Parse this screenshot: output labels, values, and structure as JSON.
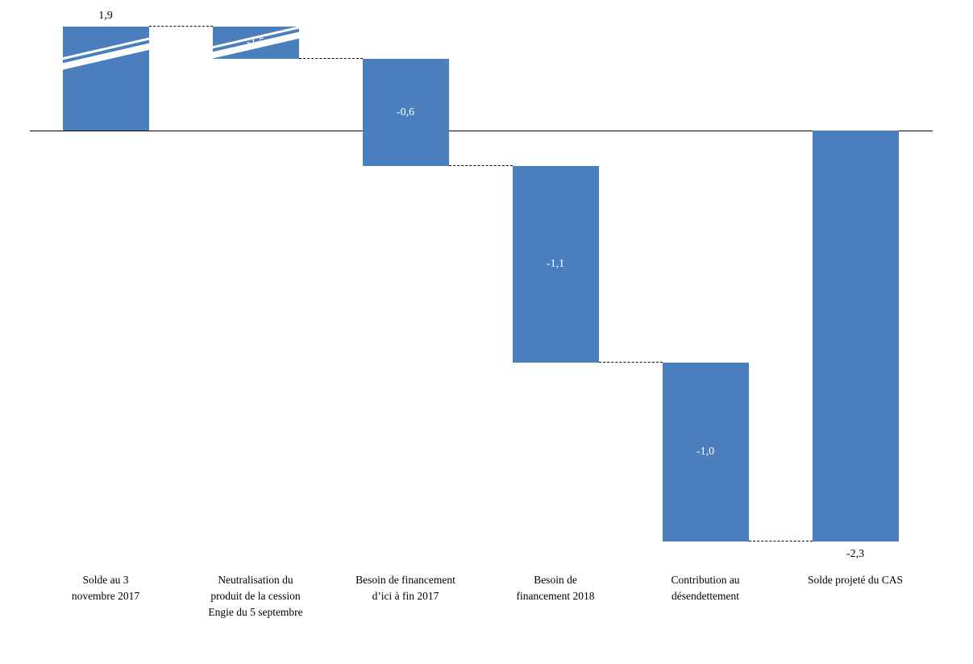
{
  "chart_data": {
    "type": "bar",
    "subtype": "waterfall",
    "title": "",
    "categories": [
      "Solde au 3 novembre 2017",
      "Neutralisation du produit de la cession Engie du 5 septembre",
      "Besoin de financement d’ici à fin 2017",
      "Besoin de financement 2018",
      "Contribution au désendettement",
      "Solde projeté du CAS"
    ],
    "category_lines": [
      [
        "Solde au 3",
        "novembre 2017"
      ],
      [
        "Neutralisation du",
        "produit de la cession",
        "Engie du 5 septembre"
      ],
      [
        "Besoin de financement",
        "d’ici à fin 2017"
      ],
      [
        "Besoin de",
        "financement 2018"
      ],
      [
        "Contribution au",
        "désendettement"
      ],
      [
        "Solde projeté du CAS"
      ]
    ],
    "values": [
      1.9,
      -1.5,
      -0.6,
      -1.1,
      -1.0,
      -2.3
    ],
    "value_labels": [
      "1,9",
      "-1,5",
      "-0,6",
      "-1,1",
      "-1,0",
      "-2,3"
    ],
    "is_total": [
      false,
      false,
      false,
      false,
      false,
      true
    ],
    "label_positions": [
      "above",
      "inside",
      "inside",
      "inside",
      "inside",
      "below"
    ],
    "axis_break_bars": [
      0,
      1
    ],
    "ylim": [
      -2.3,
      1.9
    ],
    "grid": false,
    "legend": false,
    "colors": {
      "bar": "#4a7ebc",
      "value_inside": "#ffffff",
      "value_outside": "#000000",
      "connector": "#000000",
      "axis": "#000000",
      "background": "#ffffff"
    }
  }
}
